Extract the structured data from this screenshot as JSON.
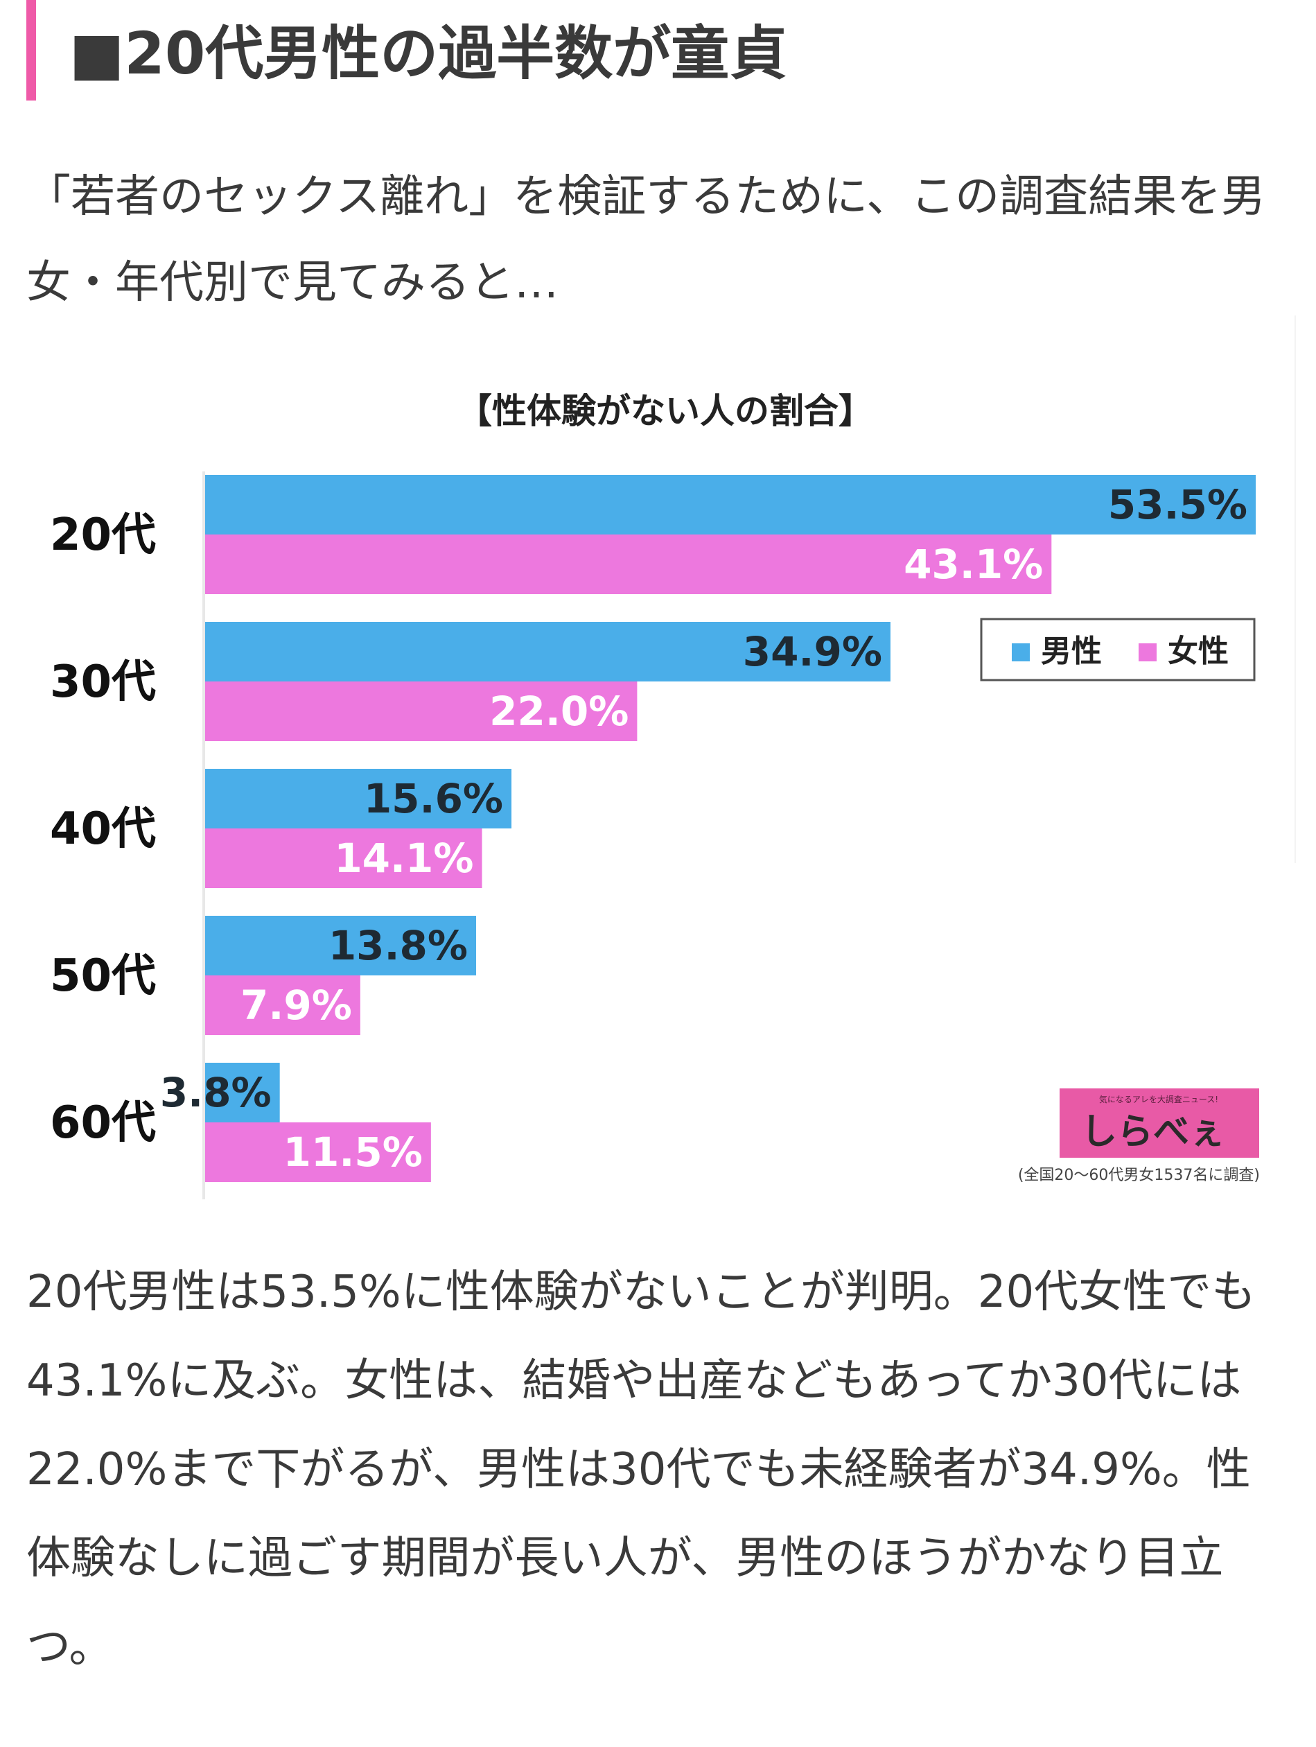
{
  "page": {
    "heading": "■20代男性の過半数が童貞",
    "intro": "「若者のセックス離れ」を検証するために、この調査結果を男女・年代別で見てみると…",
    "body": "20代男性は53.5%に性体験がないことが判明。20代女性でも43.1%に及ぶ。女性は、結婚や出産などもあってか30代には22.0%まで下がるが、男性は30代でも未経験者が34.9%。性体験なしに過ごす期間が長い人が、男性のほうがかなり目立つ。"
  },
  "chart_data": {
    "type": "bar",
    "orientation": "horizontal",
    "title": "【性体験がない人の割合】",
    "categories": [
      "20代",
      "30代",
      "40代",
      "50代",
      "60代"
    ],
    "series": [
      {
        "name": "男性",
        "color": "#4aaee9",
        "values": [
          53.5,
          34.9,
          15.6,
          13.8,
          3.8
        ],
        "labels": [
          "53.5%",
          "34.9%",
          "15.6%",
          "13.8%",
          "3.8%"
        ]
      },
      {
        "name": "女性",
        "color": "#ed78de",
        "values": [
          43.1,
          22.0,
          14.1,
          7.9,
          11.5
        ],
        "labels": [
          "43.1%",
          "22.0%",
          "14.1%",
          "7.9%",
          "11.5%"
        ]
      }
    ],
    "xlim": [
      0,
      53.5
    ],
    "grid": false,
    "legend": "top-right",
    "logo": "しらべぇ",
    "logo_tagline": "気になるアレを大調査ニュース!",
    "source": "(全国20〜60代男女1537名に調査)",
    "axis_color": "#e8e8e8"
  }
}
